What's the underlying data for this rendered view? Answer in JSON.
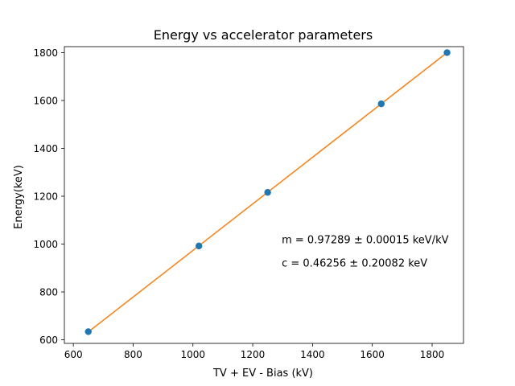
{
  "chart_data": {
    "type": "scatter",
    "title": "Energy vs accelerator parameters",
    "xlabel": "TV + EV - Bias (kV)",
    "ylabel": "Energy(keV)",
    "xlim": [
      570,
      1905
    ],
    "ylim": [
      585,
      1825
    ],
    "xticks": [
      600,
      800,
      1000,
      1200,
      1400,
      1600,
      1800
    ],
    "yticks": [
      600,
      800,
      1000,
      1200,
      1400,
      1600,
      1800
    ],
    "grid": false,
    "series": [
      {
        "kind": "points",
        "color": "#1f77b4",
        "x": [
          650,
          1020,
          1250,
          1630,
          1850
        ],
        "y": [
          634,
          992,
          1216,
          1586,
          1800
        ]
      },
      {
        "kind": "fit-line",
        "color": "#ff7f0e",
        "x": [
          650,
          1850
        ],
        "y": [
          632.84,
          1800.31
        ]
      }
    ],
    "annotations": [
      {
        "text": "m = 0.97289 ± 0.00015 keV/kV",
        "x": 1297,
        "y": 1003
      },
      {
        "text": "c = 0.46256 ± 0.20082 keV",
        "x": 1297,
        "y": 906
      }
    ]
  }
}
